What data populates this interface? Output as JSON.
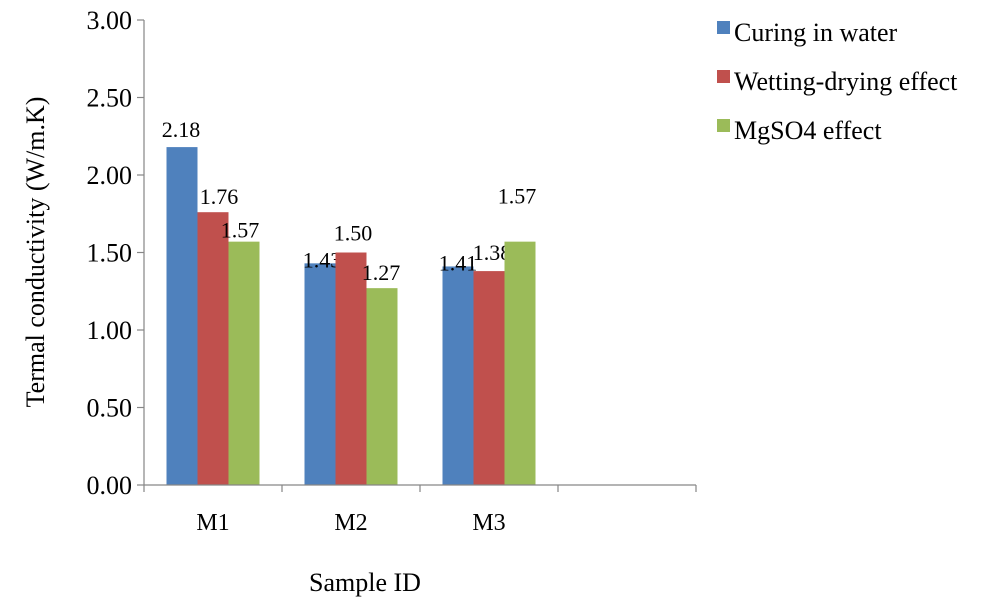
{
  "chart_data": {
    "type": "bar",
    "categories": [
      "M1",
      "M2",
      "M3",
      ""
    ],
    "series": [
      {
        "name": "Curing in water",
        "values": [
          2.18,
          1.43,
          1.41,
          null
        ],
        "color": "#4F81BD"
      },
      {
        "name": "Wetting-drying effect",
        "values": [
          1.76,
          1.5,
          1.38,
          null
        ],
        "color": "#C0504D"
      },
      {
        "name": "MgSO4 effect",
        "values": [
          1.57,
          1.27,
          1.57,
          null
        ],
        "color": "#9BBB59"
      }
    ],
    "data_labels": [
      [
        "2.18",
        "1.43",
        "1.41"
      ],
      [
        "1.76",
        "1.50",
        "1.38"
      ],
      [
        "1.57",
        "1.27",
        "1.57"
      ]
    ],
    "xlabel": "Sample ID",
    "ylabel": "Termal conductivity (W/m.K)",
    "ylim": [
      0,
      3.0
    ],
    "yticks": [
      "0.00",
      "0.50",
      "1.00",
      "1.50",
      "2.00",
      "2.50",
      "3.00"
    ],
    "grid": false,
    "legend_position": "top-right"
  }
}
